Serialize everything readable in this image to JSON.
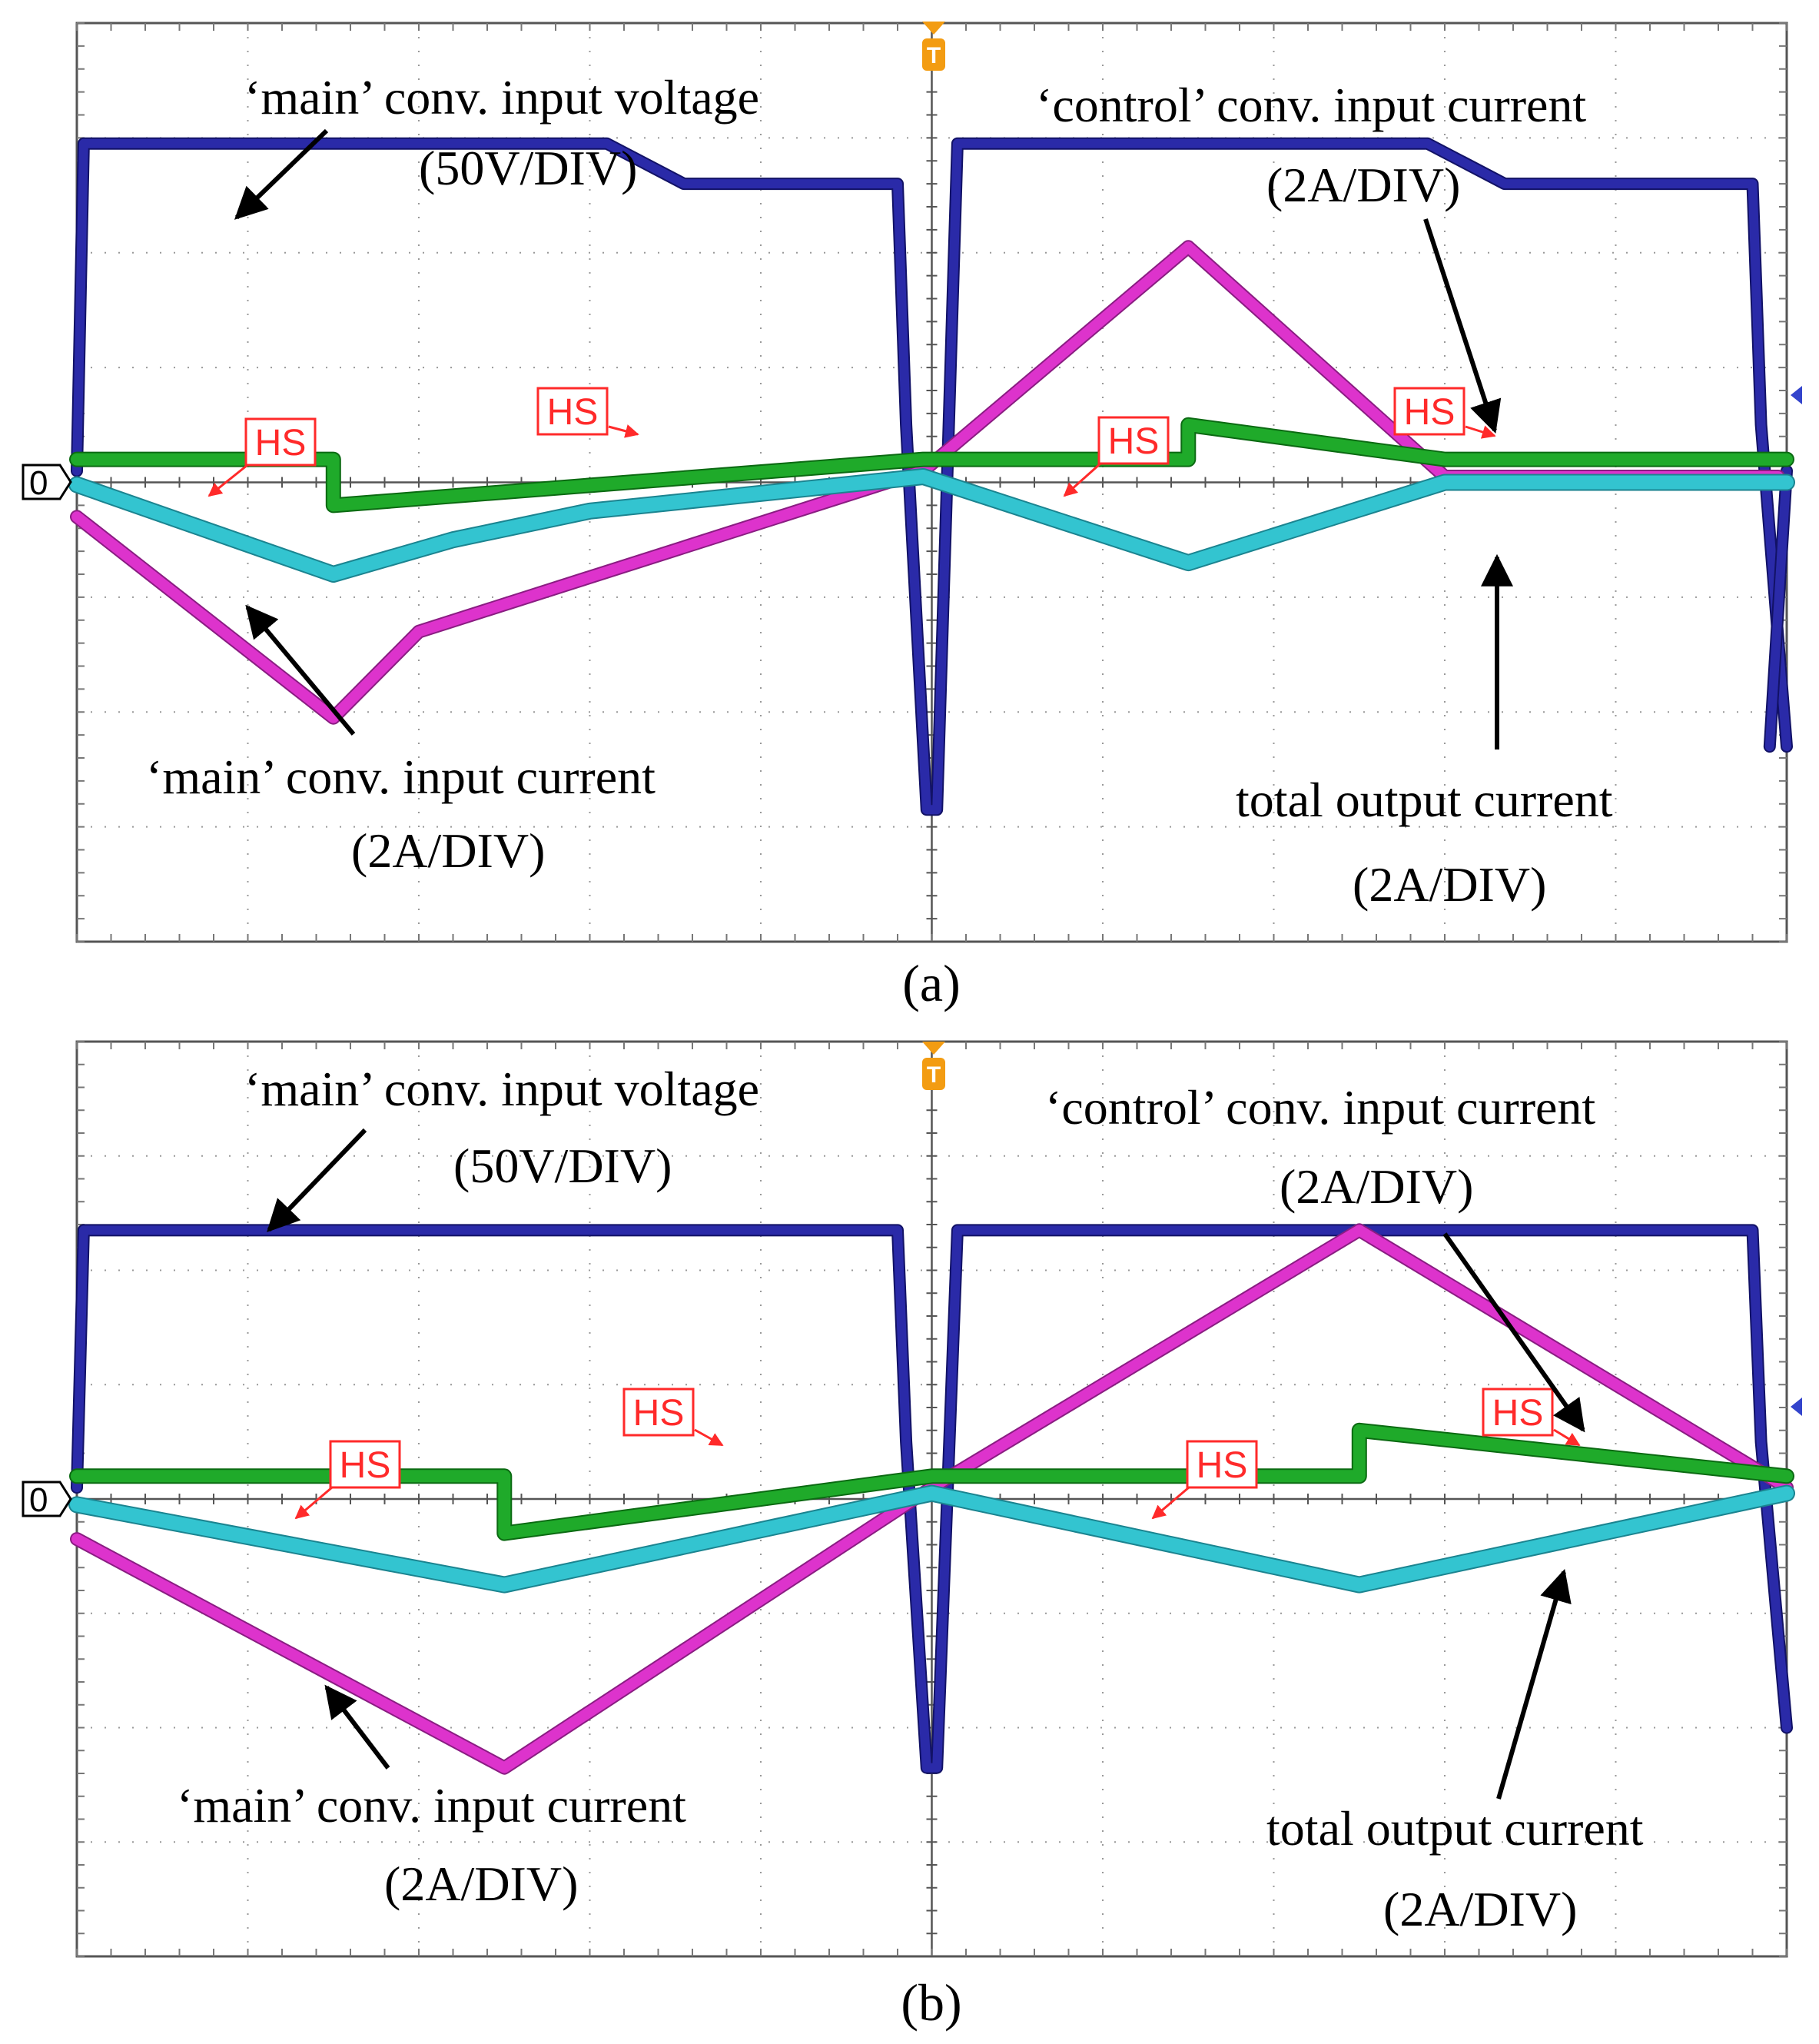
{
  "chart_data": [
    {
      "type": "line",
      "panel_label": "(a)",
      "grid": true,
      "divisions": {
        "x": 10,
        "y": 8
      },
      "zero_marker": "0",
      "trigger_marker": "T",
      "colors": {
        "voltage": "#2a2aa8",
        "main_current": "#dd33cc",
        "control_current": "#1faa2a",
        "output_current": "#33c4d0",
        "hs": "#ff2a2a",
        "arrow": "#000000"
      },
      "series": [
        {
          "key": "voltage",
          "x": [
            0,
            0.04,
            3.1,
            3.55,
            4.8,
            4.85,
            4.97,
            5.03,
            5.15,
            7.9,
            8.35,
            9.8,
            9.85,
            10
          ],
          "y": [
            0.1,
            2.95,
            2.95,
            2.6,
            2.6,
            0.5,
            -2.85,
            -2.85,
            2.95,
            2.95,
            2.6,
            2.6,
            0.5,
            -2.3
          ]
        },
        {
          "key": "main_current",
          "x": [
            0,
            1.5,
            2.0,
            4.95,
            6.5,
            8.0,
            9.95
          ],
          "y": [
            -0.3,
            -2.05,
            -1.3,
            0.1,
            2.05,
            0.05,
            0.05
          ]
        },
        {
          "key": "control_current",
          "x": [
            0,
            1.5,
            1.5,
            4.95,
            6.5,
            6.5,
            8.0,
            10
          ],
          "y": [
            0.2,
            0.2,
            -0.2,
            0.2,
            0.2,
            0.5,
            0.2,
            0.2
          ]
        },
        {
          "key": "output_current",
          "x": [
            0,
            1.5,
            2.2,
            3.0,
            4.95,
            6.5,
            8.0,
            10
          ],
          "y": [
            -0.02,
            -0.8,
            -0.5,
            -0.25,
            0.05,
            -0.7,
            0.0,
            0.0
          ]
        }
      ],
      "cycle_copies": [
        {
          "key": "voltage",
          "x": [
            9.9,
            10
          ],
          "y": [
            -2.3,
            0.1
          ]
        }
      ],
      "hs_markers": [
        {
          "label": "HS",
          "x": 1.5,
          "y": -0.2
        },
        {
          "label": "HS",
          "x": 6.5,
          "y": 0.5
        }
      ],
      "annotations": [
        {
          "text": "‘main’ conv. input voltage"
        },
        {
          "text": "(50V/DIV)"
        },
        {
          "text": "‘control’ conv. input current"
        },
        {
          "text": "(2A/DIV)"
        },
        {
          "text": "‘main’ conv. input current"
        },
        {
          "text": "(2A/DIV)"
        },
        {
          "text": "total output current"
        },
        {
          "text": "(2A/DIV)"
        }
      ]
    },
    {
      "type": "line",
      "panel_label": "(b)",
      "grid": true,
      "divisions": {
        "x": 10,
        "y": 8
      },
      "zero_marker": "0",
      "trigger_marker": "T",
      "colors": {
        "voltage": "#2a2aa8",
        "main_current": "#dd33cc",
        "control_current": "#1faa2a",
        "output_current": "#33c4d0",
        "hs": "#ff2a2a",
        "arrow": "#000000"
      },
      "series": [
        {
          "key": "voltage",
          "x": [
            0,
            0.04,
            4.8,
            4.85,
            4.97,
            5.03,
            5.15,
            9.8,
            9.85,
            10
          ],
          "y": [
            0.1,
            2.35,
            2.35,
            0.5,
            -2.35,
            -2.35,
            2.35,
            2.35,
            0.5,
            -2.0
          ]
        },
        {
          "key": "main_current",
          "x": [
            0,
            2.5,
            5.0,
            7.5,
            10
          ],
          "y": [
            -0.35,
            -2.35,
            0.1,
            2.35,
            0.1
          ]
        },
        {
          "key": "control_current",
          "x": [
            0,
            2.5,
            2.5,
            5.0,
            7.5,
            7.5,
            10
          ],
          "y": [
            0.2,
            0.2,
            -0.3,
            0.2,
            0.2,
            0.6,
            0.2
          ]
        },
        {
          "key": "output_current",
          "x": [
            0,
            2.5,
            5.0,
            7.5,
            10
          ],
          "y": [
            -0.05,
            -0.75,
            0.05,
            -0.75,
            0.05
          ]
        }
      ],
      "cycle_copies": [],
      "hs_markers": [
        {
          "label": "HS",
          "x": 2.5,
          "y": -0.3
        },
        {
          "label": "HS",
          "x": 7.5,
          "y": 0.6
        }
      ],
      "annotations": [
        {
          "text": "‘main’ conv. input voltage"
        },
        {
          "text": "(50V/DIV)"
        },
        {
          "text": "‘control’ conv. input current"
        },
        {
          "text": "(2A/DIV)"
        },
        {
          "text": "‘main’ conv. input current"
        },
        {
          "text": "(2A/DIV)"
        },
        {
          "text": "total output current"
        },
        {
          "text": "(2A/DIV)"
        }
      ]
    }
  ]
}
